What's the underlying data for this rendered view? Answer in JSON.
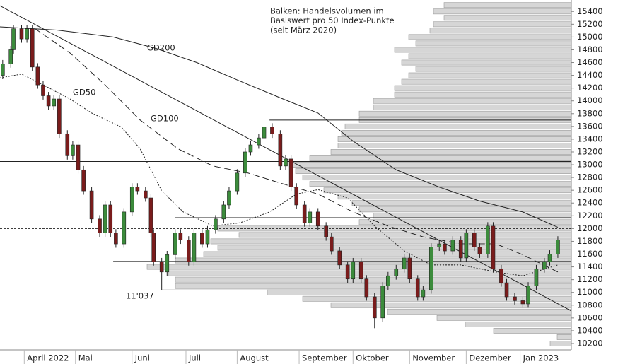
{
  "chart_data": {
    "type": "candlestick",
    "x": [
      1,
      4,
      5,
      8,
      10,
      12,
      14,
      16,
      18,
      20,
      22,
      25,
      27,
      29,
      31,
      34,
      37,
      39,
      41,
      43,
      46,
      49,
      51,
      54,
      56,
      57,
      60,
      62,
      65,
      67,
      70,
      72,
      75,
      77,
      80,
      83,
      85,
      88,
      91,
      93,
      96,
      98,
      101,
      104,
      106,
      108,
      110,
      113,
      115,
      118,
      121,
      123,
      126,
      129,
      131,
      134,
      136,
      139,
      142,
      144,
      147,
      150,
      152,
      155,
      157,
      160,
      163,
      165,
      168,
      171,
      173,
      176,
      178,
      181,
      183,
      186,
      188,
      191,
      194,
      196,
      199,
      202,
      204,
      207
    ],
    "open": [
      14400,
      14580,
      14800,
      15130,
      14970,
      15130,
      14530,
      14250,
      14080,
      13920,
      14030,
      13480,
      13140,
      13310,
      12920,
      12590,
      12150,
      11930,
      12370,
      11930,
      11760,
      12260,
      12650,
      12590,
      12480,
      11930,
      11480,
      11320,
      11590,
      11930,
      11820,
      11480,
      11930,
      11760,
      11980,
      12150,
      12370,
      12590,
      12870,
      13200,
      13310,
      13420,
      13590,
      13480,
      12980,
      13090,
      12650,
      12370,
      12090,
      12260,
      12040,
      11870,
      11650,
      11430,
      11210,
      11480,
      11210,
      10930,
      10600,
      11100,
      11260,
      11370,
      11540,
      11210,
      10930,
      11040,
      11710,
      11760,
      11650,
      11820,
      11540,
      11930,
      11710,
      11600,
      12040,
      11370,
      11150,
      10930,
      10870,
      10820,
      11100,
      11370,
      11480,
      11600
    ],
    "high": [
      14640,
      14860,
      15190,
      15190,
      15190,
      15190,
      14590,
      14310,
      14140,
      14090,
      14090,
      13540,
      13370,
      13370,
      12980,
      12650,
      12210,
      12430,
      12430,
      11990,
      12320,
      12710,
      12710,
      12650,
      12540,
      11990,
      11540,
      11650,
      11990,
      11990,
      11880,
      11990,
      11990,
      12040,
      12210,
      12430,
      12650,
      12930,
      13260,
      13370,
      13480,
      13650,
      13650,
      13540,
      13150,
      13150,
      12710,
      12430,
      12320,
      12320,
      12100,
      11930,
      11710,
      11490,
      11540,
      11540,
      11270,
      10990,
      11160,
      11320,
      11430,
      11600,
      11600,
      11270,
      11100,
      11770,
      11820,
      11820,
      11880,
      11880,
      11990,
      11990,
      11770,
      12100,
      12100,
      11430,
      11210,
      10990,
      10930,
      11160,
      11430,
      11540,
      11660,
      11880
    ],
    "low": [
      14340,
      14520,
      14740,
      14910,
      14910,
      14470,
      14190,
      14020,
      13860,
      13860,
      13420,
      13080,
      13080,
      12860,
      12530,
      12090,
      11870,
      11870,
      11870,
      11700,
      11700,
      12200,
      12530,
      12420,
      11870,
      11420,
      11037,
      11260,
      11530,
      11760,
      11420,
      11420,
      11700,
      11700,
      11920,
      12090,
      12310,
      12530,
      12810,
      13140,
      13250,
      13360,
      13420,
      12920,
      12920,
      12590,
      12310,
      12030,
      12030,
      11980,
      11810,
      11590,
      11370,
      11150,
      11150,
      11150,
      10870,
      10440,
      10540,
      11040,
      11200,
      11310,
      11150,
      10870,
      10870,
      10980,
      11650,
      11590,
      11590,
      11480,
      11480,
      11650,
      11540,
      11540,
      11310,
      11090,
      10870,
      10810,
      10760,
      10760,
      11040,
      11310,
      11420,
      11540
    ],
    "close": [
      14580,
      14800,
      15130,
      14970,
      15130,
      14530,
      14250,
      14080,
      13920,
      14030,
      13480,
      13140,
      13310,
      12920,
      12590,
      12150,
      11930,
      12370,
      11930,
      11760,
      12260,
      12650,
      12590,
      12480,
      11930,
      11480,
      11320,
      11590,
      11930,
      11820,
      11480,
      11930,
      11760,
      11980,
      12150,
      12370,
      12590,
      12870,
      13200,
      13310,
      13420,
      13590,
      13480,
      12980,
      13090,
      12650,
      12370,
      12090,
      12260,
      12040,
      11870,
      11650,
      11430,
      11210,
      11480,
      11210,
      10930,
      10600,
      11100,
      11260,
      11370,
      11540,
      11210,
      10930,
      11040,
      11710,
      11760,
      11650,
      11820,
      11540,
      11930,
      11710,
      11600,
      12040,
      11370,
      11150,
      10930,
      10870,
      10820,
      11100,
      11370,
      11480,
      11600,
      11820
    ],
    "up_color": "#3c8c3c",
    "down_color": "#7a1c1c",
    "xlim": [
      0,
      212
    ],
    "ylim": [
      10100,
      15580
    ],
    "yticks": [
      10200,
      10400,
      10600,
      10800,
      11000,
      11200,
      11400,
      11600,
      11800,
      12000,
      12200,
      12400,
      12600,
      12800,
      13000,
      13200,
      13400,
      13600,
      13800,
      14000,
      14200,
      14400,
      14600,
      14800,
      15000,
      15200,
      15400
    ],
    "xticks": [
      {
        "value": 9,
        "label": "April 2022"
      },
      {
        "value": 28,
        "label": "Mai"
      },
      {
        "value": 49,
        "label": "Juni"
      },
      {
        "value": 69,
        "label": "Juli"
      },
      {
        "value": 88,
        "label": "August"
      },
      {
        "value": 111,
        "label": "September"
      },
      {
        "value": 131,
        "label": "Oktober"
      },
      {
        "value": 152,
        "label": "November"
      },
      {
        "value": 173,
        "label": "Dezember"
      },
      {
        "value": 193,
        "label": "Jan 2023"
      }
    ],
    "moving_averages": [
      {
        "name": "GD200",
        "dash": "solid",
        "x": [
          0,
          21,
          42,
          58,
          73,
          89,
          105,
          118,
          131,
          147,
          163,
          178,
          194,
          207
        ],
        "values": [
          15160,
          15110,
          15000,
          14820,
          14600,
          14310,
          14030,
          13810,
          13370,
          12920,
          12650,
          12430,
          12260,
          12020
        ]
      },
      {
        "name": "GD100",
        "dash": "long",
        "x": [
          13,
          26,
          39,
          52,
          66,
          79,
          92,
          105,
          118,
          131,
          144,
          157,
          171,
          184,
          194,
          207
        ],
        "values": [
          15130,
          14750,
          14250,
          13700,
          13250,
          12980,
          12870,
          12700,
          12540,
          12260,
          12040,
          11870,
          11760,
          11760,
          11590,
          11320
        ]
      },
      {
        "name": "GD50",
        "dash": "short",
        "x": [
          0,
          8,
          16,
          26,
          34,
          45,
          52,
          60,
          68,
          79,
          89,
          100,
          110,
          118,
          129,
          139,
          150,
          160,
          171,
          184,
          194,
          207
        ],
        "values": [
          14360,
          14420,
          14250,
          14030,
          13810,
          13590,
          13250,
          12590,
          12260,
          12040,
          12090,
          12260,
          12540,
          12610,
          12480,
          12040,
          11650,
          11430,
          11430,
          11320,
          11260,
          11430
        ]
      }
    ],
    "trend": {
      "x": [
        0,
        212
      ],
      "values": [
        15490,
        10710
      ]
    },
    "levels": [
      {
        "value": 13700,
        "from": 100,
        "style": "solid"
      },
      {
        "value": 13050,
        "from": 0,
        "style": "solid"
      },
      {
        "value": 12170,
        "from": 65,
        "style": "solid"
      },
      {
        "value": 12000,
        "from": 0,
        "style": "dashed"
      },
      {
        "value": 11485,
        "from": 42,
        "style": "solid"
      },
      {
        "value": 11037,
        "from": 60,
        "style": "solid"
      }
    ],
    "volume_profile": {
      "levels": [
        10200,
        10300,
        10400,
        10500,
        10600,
        10700,
        10800,
        10900,
        11000,
        11100,
        11200,
        11300,
        11400,
        11500,
        11600,
        11700,
        11800,
        11900,
        12000,
        12100,
        12200,
        12300,
        12400,
        12500,
        12600,
        12700,
        12800,
        12900,
        13000,
        13100,
        13200,
        13300,
        13400,
        13500,
        13600,
        13700,
        13800,
        13900,
        14000,
        14100,
        14200,
        14300,
        14400,
        14500,
        14600,
        14700,
        14800,
        14900,
        15000,
        15100,
        15200,
        15300,
        15400,
        15500
      ],
      "values": [
        30,
        20,
        110,
        150,
        190,
        260,
        340,
        380,
        430,
        560,
        560,
        570,
        600,
        560,
        520,
        500,
        510,
        470,
        500,
        300,
        280,
        300,
        310,
        330,
        350,
        370,
        380,
        390,
        395,
        370,
        340,
        330,
        330,
        325,
        320,
        300,
        300,
        280,
        280,
        250,
        250,
        240,
        230,
        220,
        240,
        230,
        250,
        220,
        230,
        200,
        195,
        180,
        195,
        180
      ],
      "vlim": [
        0,
        808
      ],
      "color": "#d6d6d6"
    },
    "annotation": [
      "Balken: Handelsvolumen im",
      "Basiswert pro 50 Index-Punkte",
      "(seit März 2020)"
    ],
    "low_label": "11'037"
  }
}
